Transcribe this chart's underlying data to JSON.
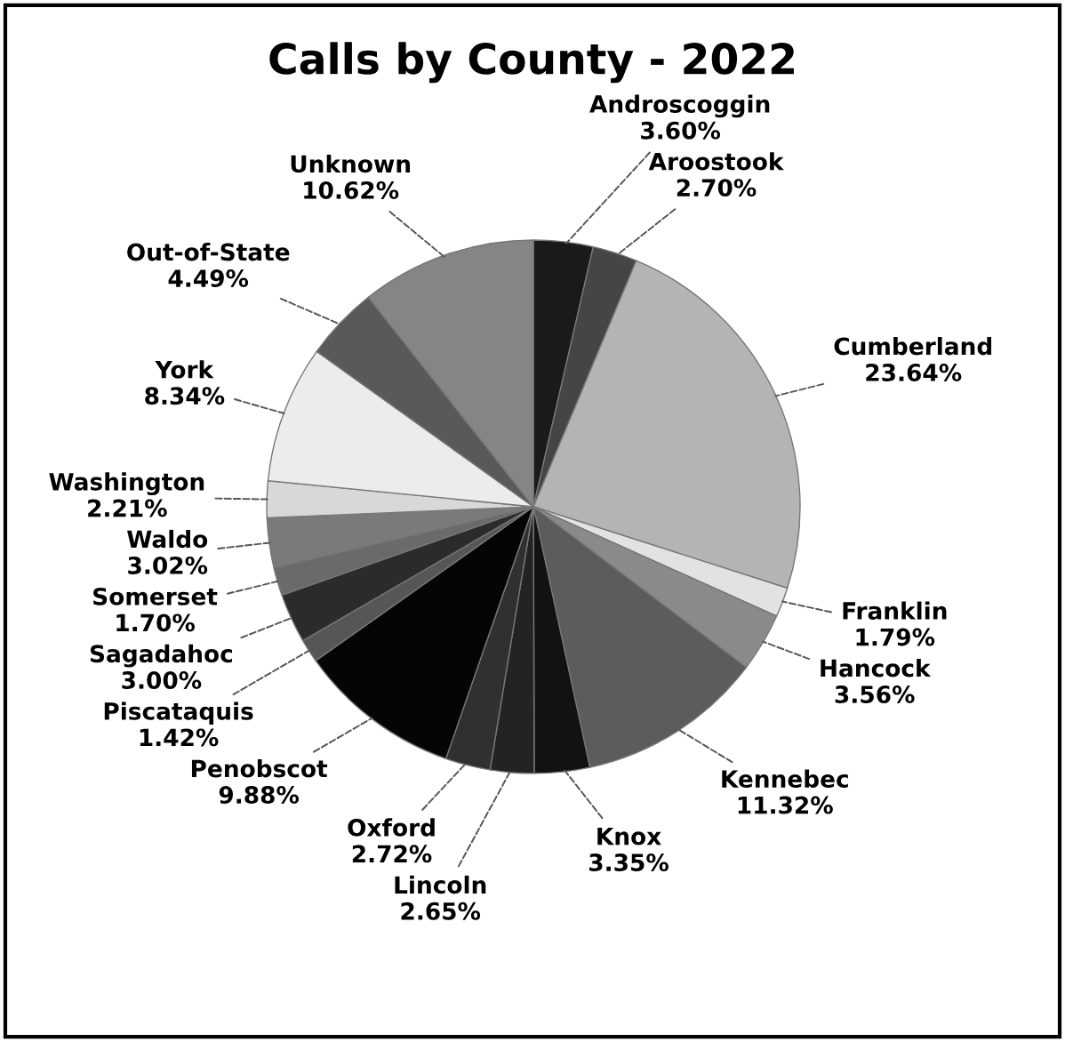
{
  "chart_data": {
    "type": "pie",
    "title": "Calls by County - 2022",
    "categories": [
      "Androscoggin",
      "Aroostook",
      "Cumberland",
      "Franklin",
      "Hancock",
      "Kennebec",
      "Knox",
      "Lincoln",
      "Oxford",
      "Penobscot",
      "Piscataquis",
      "Sagadahoc",
      "Somerset",
      "Waldo",
      "Washington",
      "York",
      "Out-of-State",
      "Unknown"
    ],
    "values": [
      3.6,
      2.7,
      23.64,
      1.79,
      3.56,
      11.32,
      3.35,
      2.65,
      2.72,
      9.88,
      1.42,
      3.0,
      1.7,
      3.02,
      2.21,
      8.34,
      4.49,
      10.62
    ],
    "value_labels": [
      "3.60%",
      "2.70%",
      "23.64%",
      "1.79%",
      "3.56%",
      "11.32%",
      "3.35%",
      "2.65%",
      "2.72%",
      "9.88%",
      "1.42%",
      "3.00%",
      "1.70%",
      "3.02%",
      "2.21%",
      "8.34%",
      "4.49%",
      "10.62%"
    ],
    "colors": [
      "#1a1a1a",
      "#454545",
      "#b4b4b4",
      "#e2e2e2",
      "#8a8a8a",
      "#5c5c5c",
      "#121212",
      "#232323",
      "#303030",
      "#050505",
      "#565656",
      "#2b2b2b",
      "#6a6a6a",
      "#7a7a7a",
      "#d8d8d8",
      "#ececec",
      "#595959",
      "#858585"
    ],
    "legend": false
  }
}
